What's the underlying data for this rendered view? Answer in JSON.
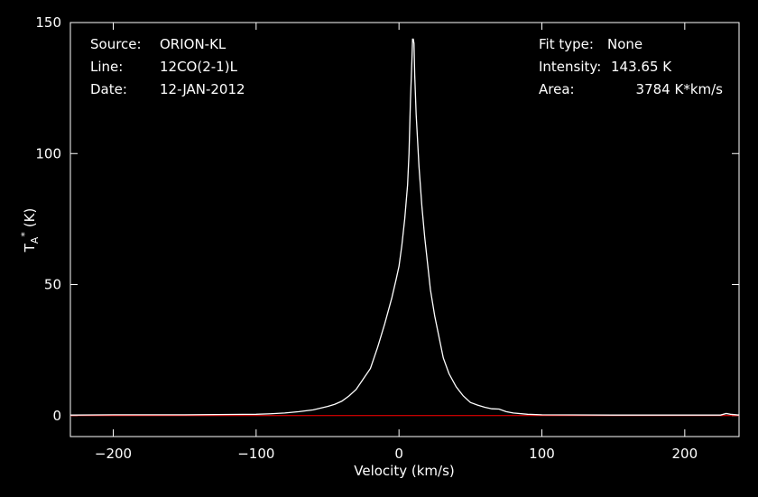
{
  "info": {
    "source_label": "Source:",
    "source_value": "ORION-KL",
    "line_label": "Line:",
    "line_value": "12CO(2-1)L",
    "date_label": "Date:",
    "date_value": "12-JAN-2012",
    "fit_label": "Fit type:",
    "fit_value": "None",
    "intensity_label": "Intensity:",
    "intensity_value": "143.65 K",
    "area_label": "Area:",
    "area_value": "3784 K*km/s"
  },
  "chart_data": {
    "type": "line",
    "xlabel": "Velocity (km/s)",
    "ylabel": "T",
    "ylabel_sub": "A",
    "ylabel_sup": "*",
    "ylabel_unit": "(K)",
    "xlim": [
      -230,
      238
    ],
    "ylim": [
      -8,
      150
    ],
    "xticks": [
      -200,
      -100,
      0,
      100,
      200
    ],
    "xtick_labels": [
      "−200",
      "−100",
      "0",
      "100",
      "200"
    ],
    "yticks": [
      0,
      50,
      100,
      150
    ],
    "ytick_labels": [
      "0",
      "50",
      "100",
      "150"
    ],
    "grid": false,
    "baseline": {
      "y": 0,
      "color": "#ff0000"
    },
    "series": [
      {
        "color": "#ffffff",
        "points": [
          [
            -230,
            0.2
          ],
          [
            -200,
            0.3
          ],
          [
            -150,
            0.3
          ],
          [
            -100,
            0.5
          ],
          [
            -90,
            0.7
          ],
          [
            -80,
            1.0
          ],
          [
            -70,
            1.5
          ],
          [
            -60,
            2.2
          ],
          [
            -50,
            3.5
          ],
          [
            -45,
            4.3
          ],
          [
            -40,
            5.5
          ],
          [
            -35,
            7.5
          ],
          [
            -30,
            10.0
          ],
          [
            -25,
            14.0
          ],
          [
            -20,
            18.0
          ],
          [
            -15,
            26.0
          ],
          [
            -10,
            35.0
          ],
          [
            -5,
            45.0
          ],
          [
            -2,
            52.0
          ],
          [
            0,
            57.0
          ],
          [
            2,
            65.0
          ],
          [
            4,
            75.0
          ],
          [
            6,
            88.0
          ],
          [
            7,
            100.0
          ],
          [
            8,
            120.0
          ],
          [
            9,
            135.0
          ],
          [
            9.5,
            143.65
          ],
          [
            10,
            143.65
          ],
          [
            10.5,
            142.0
          ],
          [
            11,
            130.0
          ],
          [
            12,
            115.0
          ],
          [
            14,
            95.0
          ],
          [
            16,
            80.0
          ],
          [
            18,
            68.0
          ],
          [
            20,
            58.0
          ],
          [
            22,
            48.0
          ],
          [
            25,
            38.0
          ],
          [
            28,
            30.0
          ],
          [
            31,
            22.0
          ],
          [
            35,
            16.0
          ],
          [
            40,
            11.0
          ],
          [
            45,
            7.5
          ],
          [
            50,
            5.0
          ],
          [
            55,
            4.0
          ],
          [
            60,
            3.2
          ],
          [
            65,
            2.6
          ],
          [
            70,
            2.5
          ],
          [
            75,
            1.5
          ],
          [
            80,
            1.0
          ],
          [
            90,
            0.5
          ],
          [
            100,
            0.3
          ],
          [
            150,
            0.2
          ],
          [
            200,
            0.2
          ],
          [
            225,
            0.2
          ],
          [
            229,
            0.8
          ],
          [
            232,
            0.5
          ],
          [
            238,
            0.2
          ]
        ]
      }
    ]
  }
}
